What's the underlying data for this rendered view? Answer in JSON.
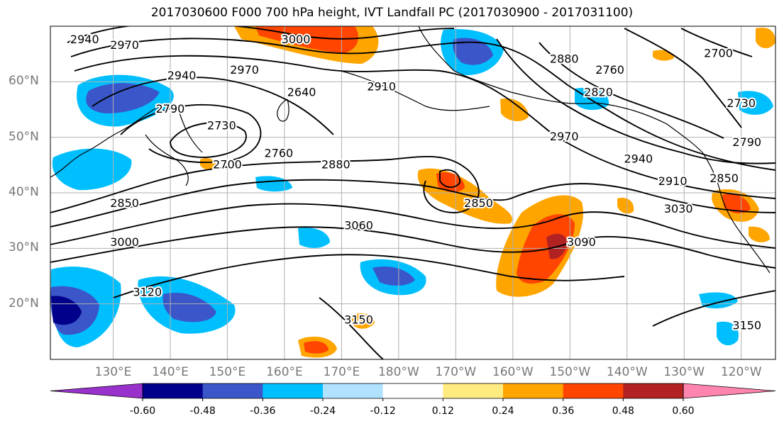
{
  "title": "2017030600 F000 700 hPa height, IVT Landfall PC (2017030900 - 2017031100)",
  "map": {
    "projection": "equirectangular",
    "lon_range": [
      119,
      246
    ],
    "lat_range": [
      10,
      70
    ],
    "latitude_labels": [
      "60°N",
      "50°N",
      "40°N",
      "30°N",
      "20°N"
    ],
    "longitude_labels": [
      "130°E",
      "140°E",
      "150°E",
      "160°E",
      "170°E",
      "180°W",
      "170°W",
      "160°W",
      "150°W",
      "140°W",
      "130°W",
      "120°W"
    ],
    "gridlines": true,
    "colors": {
      "contour": "#000000",
      "coastline": "#000000",
      "grid": "#b0b0b0",
      "tick_label": "#777777"
    },
    "contour_labels": [
      {
        "text": "2940",
        "lon": 125,
        "lat": 67.5
      },
      {
        "text": "2970",
        "lon": 132,
        "lat": 66.5
      },
      {
        "text": "3000",
        "lon": 162,
        "lat": 67.5
      },
      {
        "text": "2940",
        "lon": 142,
        "lat": 61
      },
      {
        "text": "2970",
        "lon": 153,
        "lat": 62
      },
      {
        "text": "2790",
        "lon": 140,
        "lat": 55
      },
      {
        "text": "2640",
        "lon": 163,
        "lat": 58
      },
      {
        "text": "2730",
        "lon": 149,
        "lat": 52
      },
      {
        "text": "2910",
        "lon": 177,
        "lat": 59
      },
      {
        "text": "2760",
        "lon": 159,
        "lat": 47
      },
      {
        "text": "2700",
        "lon": 150,
        "lat": 45
      },
      {
        "text": "2880",
        "lon": 169,
        "lat": 45
      },
      {
        "text": "2850",
        "lon": 132,
        "lat": 38
      },
      {
        "text": "3000",
        "lon": 132,
        "lat": 31
      },
      {
        "text": "3060",
        "lon": 173,
        "lat": 34
      },
      {
        "text": "2850",
        "lon": 194,
        "lat": 38
      },
      {
        "text": "3090",
        "lon": 212,
        "lat": 31
      },
      {
        "text": "3120",
        "lon": 136,
        "lat": 22
      },
      {
        "text": "3150",
        "lon": 173,
        "lat": 17
      },
      {
        "text": "2880",
        "lon": 209,
        "lat": 64
      },
      {
        "text": "2820",
        "lon": 215,
        "lat": 58
      },
      {
        "text": "2760",
        "lon": 217,
        "lat": 62
      },
      {
        "text": "2970",
        "lon": 209,
        "lat": 50
      },
      {
        "text": "2940",
        "lon": 222,
        "lat": 46
      },
      {
        "text": "2910",
        "lon": 228,
        "lat": 42
      },
      {
        "text": "3030",
        "lon": 229,
        "lat": 37
      },
      {
        "text": "2850",
        "lon": 237,
        "lat": 42.5
      },
      {
        "text": "2790",
        "lon": 241,
        "lat": 49
      },
      {
        "text": "2730",
        "lon": 240,
        "lat": 56
      },
      {
        "text": "2700",
        "lon": 236,
        "lat": 65
      },
      {
        "text": "3150",
        "lon": 241,
        "lat": 16
      }
    ]
  },
  "colorbar": {
    "levels": [
      "-0.60",
      "-0.48",
      "-0.36",
      "-0.24",
      "-0.12",
      "0.12",
      "0.24",
      "0.36",
      "0.48",
      "0.60"
    ],
    "colors": [
      "#9932cc",
      "#00008b",
      "#3a56c9",
      "#00bfff",
      "#b0e2ff",
      "#ffffff",
      "#ffeb80",
      "#ffa500",
      "#ff4500",
      "#b22222",
      "#ff85b0"
    ],
    "extend": "both"
  }
}
